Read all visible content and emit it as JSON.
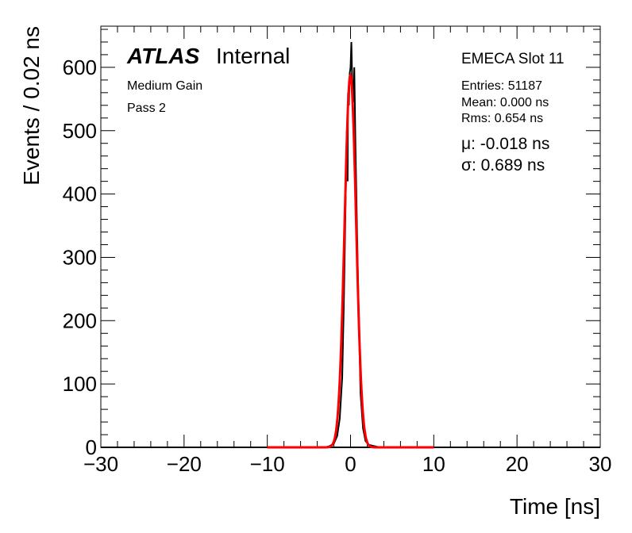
{
  "chart_data": {
    "type": "histogram",
    "xlabel": "Time [ns]",
    "ylabel": "Events / 0.02 ns",
    "xlim": [
      -30,
      30
    ],
    "ylim": [
      0,
      665
    ],
    "x_ticks": [
      -30,
      -20,
      -10,
      0,
      10,
      20,
      30
    ],
    "x_tick_labels": [
      "−30",
      "−20",
      "−10",
      "0",
      "10",
      "20",
      "30"
    ],
    "y_ticks": [
      0,
      100,
      200,
      300,
      400,
      500,
      600
    ],
    "y_tick_labels": [
      "0",
      "100",
      "200",
      "300",
      "400",
      "500",
      "600"
    ],
    "atlas_label": "ATLAS",
    "atlas_sublabel": "Internal",
    "annotations_left": [
      "Medium Gain",
      "Pass 2"
    ],
    "panel_title": "EMECA Slot 11",
    "stats": [
      "Entries: 51187",
      "Mean: 0.000 ns",
      "Rms: 0.654 ns"
    ],
    "fit_results": [
      "μ: -0.018 ns",
      "σ: 0.689 ns"
    ],
    "series": [
      {
        "name": "data",
        "style": "histogram",
        "color": "#000000",
        "x": [
          -3.0,
          -2.5,
          -2.0,
          -1.6,
          -1.3,
          -1.0,
          -0.8,
          -0.6,
          -0.45,
          -0.35,
          -0.3,
          -0.2,
          -0.1,
          0.0,
          0.1,
          0.2,
          0.3,
          0.35,
          0.45,
          0.6,
          0.8,
          1.0,
          1.2,
          1.5,
          1.8,
          2.2,
          2.8,
          3.5,
          4.5
        ],
        "y": [
          0,
          2,
          6,
          18,
          45,
          110,
          230,
          380,
          500,
          420,
          560,
          540,
          590,
          600,
          640,
          580,
          570,
          545,
          600,
          470,
          330,
          200,
          85,
          30,
          10,
          4,
          2,
          0,
          0
        ]
      },
      {
        "name": "gaussian fit",
        "style": "line",
        "color": "#ff0000",
        "function": "gaussian",
        "amplitude": 588,
        "mean": -0.018,
        "sigma": 0.689,
        "range": [
          -10,
          10
        ]
      }
    ]
  }
}
